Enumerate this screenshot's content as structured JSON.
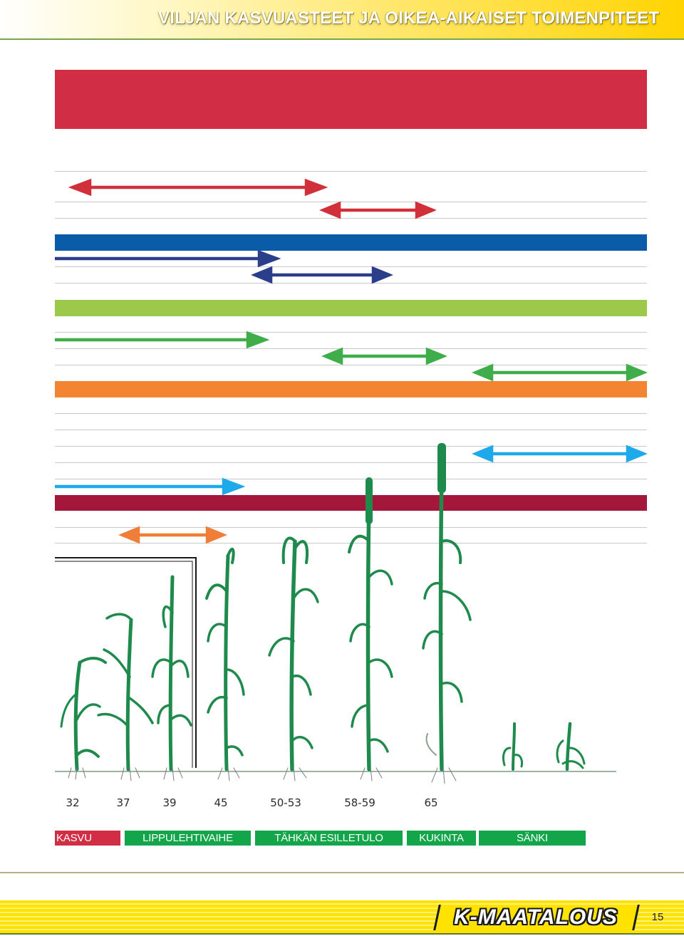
{
  "header": {
    "title": "VILJAN KASVUASTEET JA OIKEA-AIKAISET TOIMENPITEET"
  },
  "colors": {
    "red": "#d12d44",
    "blue": "#0a5ca8",
    "light_green": "#9cc94a",
    "orange": "#f38431",
    "maroon": "#a3173a",
    "arrow_red": "#d1303a",
    "arrow_navy": "#2b3e8c",
    "arrow_green": "#3fae4a",
    "arrow_cyan": "#1eaaea",
    "arrow_orange": "#f07e36",
    "plant": "#1e8a4c",
    "stage_red": "#d12d44",
    "stage_green": "#13a54a"
  },
  "growth_stages": [
    "32",
    "37",
    "39",
    "45",
    "50-53",
    "58-59",
    "65"
  ],
  "stage_bar": [
    {
      "label": "KASVU",
      "color": "#d12d44"
    },
    {
      "label": "LIPPULEHTIVAIHE",
      "color": "#13a54a"
    },
    {
      "label": "TÄHKÄN ESILLETULO",
      "color": "#13a54a"
    },
    {
      "label": "KUKINTA",
      "color": "#13a54a"
    },
    {
      "label": "SÄNKI",
      "color": "#13a54a"
    }
  ],
  "footer": {
    "logo": "K-MAATALOUS",
    "page_number": "15"
  }
}
